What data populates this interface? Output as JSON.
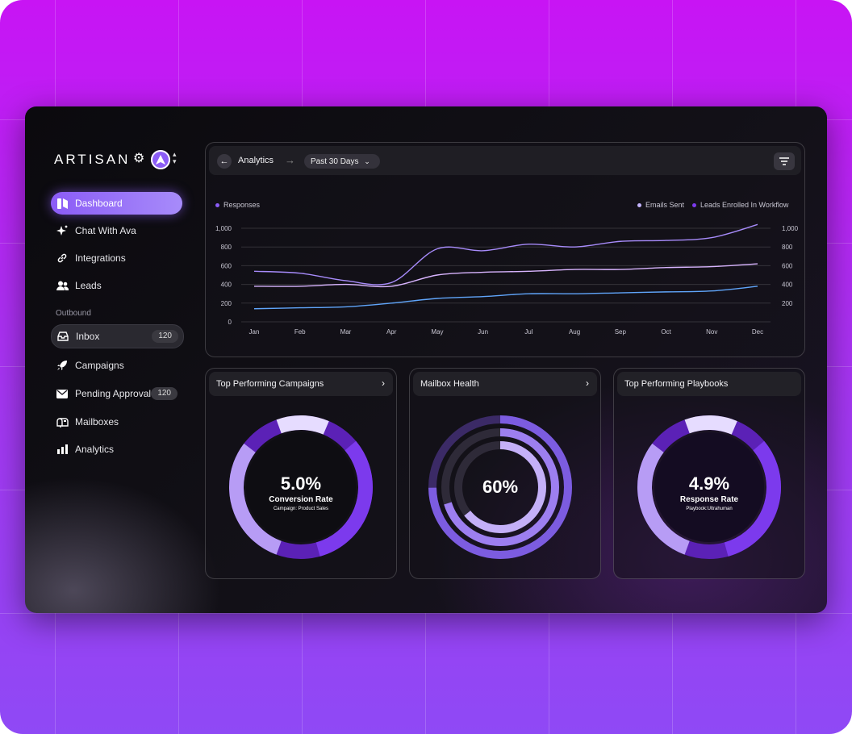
{
  "brand": {
    "logo_text": "ARTISAN"
  },
  "sidebar": {
    "items": [
      {
        "label": "Dashboard",
        "icon": "dashboard-icon",
        "active": true
      },
      {
        "label": "Chat With Ava",
        "icon": "sparkle-icon"
      },
      {
        "label": "Integrations",
        "icon": "link-icon"
      },
      {
        "label": "Leads",
        "icon": "users-icon"
      }
    ],
    "section_label": "Outbound",
    "outbound": [
      {
        "label": "Inbox",
        "icon": "inbox-icon",
        "badge": "120"
      },
      {
        "label": "Campaigns",
        "icon": "rocket-icon"
      },
      {
        "label": "Pending Approval",
        "icon": "mail-icon",
        "badge": "120"
      },
      {
        "label": "Mailboxes",
        "icon": "mailbox-icon"
      },
      {
        "label": "Analytics",
        "icon": "bar-chart-icon"
      }
    ]
  },
  "header": {
    "breadcrumb": "Analytics",
    "range": "Past 30 Days"
  },
  "chart_data": {
    "type": "line",
    "legend_left": "Responses",
    "legend_right": [
      "Emails Sent",
      "Leads Enrolled In Workflow"
    ],
    "x": [
      "Jan",
      "Feb",
      "Mar",
      "Apr",
      "May",
      "Jun",
      "Jul",
      "Aug",
      "Sep",
      "Oct",
      "Nov",
      "Dec"
    ],
    "y_ticks": [
      "1,000",
      "800",
      "600",
      "400",
      "200",
      "0"
    ],
    "y_ticks_right": [
      "1,000",
      "800",
      "600",
      "400",
      "200"
    ],
    "ylim": [
      0,
      1000
    ],
    "grid": true,
    "series": [
      {
        "name": "Emails Sent",
        "color": "#a78bfa",
        "values": [
          540,
          520,
          440,
          420,
          780,
          760,
          830,
          800,
          860,
          870,
          900,
          1040
        ]
      },
      {
        "name": "Leads Enrolled In Workflow",
        "color": "#d8b4fe",
        "values": [
          380,
          380,
          400,
          380,
          500,
          530,
          540,
          560,
          560,
          580,
          590,
          620
        ]
      },
      {
        "name": "Responses",
        "color": "#60a5fa",
        "values": [
          140,
          150,
          160,
          200,
          250,
          270,
          300,
          300,
          310,
          320,
          330,
          380
        ]
      }
    ]
  },
  "cards": [
    {
      "title": "Top Performing Campaigns",
      "value": "5.0%",
      "label": "Conversion Rate",
      "sub": "Campaign: Product Sales"
    },
    {
      "title": "Mailbox Health",
      "value": "60%"
    },
    {
      "title": "Top Performing Playbooks",
      "value": "4.9%",
      "label": "Response Rate",
      "sub": "Playbook:Ultrahuman"
    }
  ]
}
